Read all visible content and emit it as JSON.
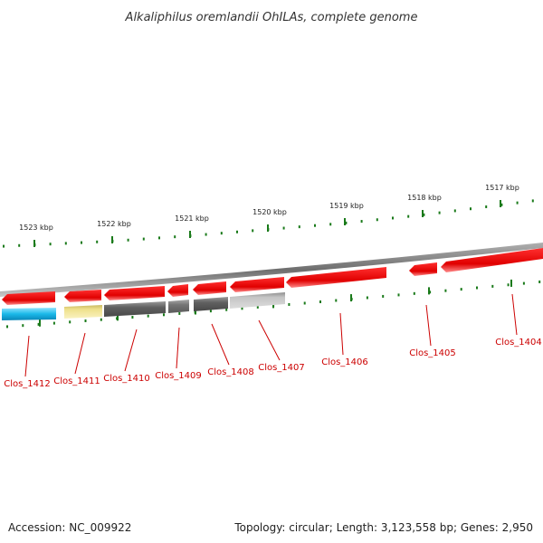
{
  "title": "Alkaliphilus oremlandii OhILAs, complete genome",
  "footer": {
    "accession_label": "Accession:",
    "accession": "NC_009922",
    "topology_label": "Topology:",
    "topology": "circular",
    "length_label": "Length:",
    "length": "3,123,558 bp",
    "genes_label": "Genes:",
    "genes": "2,950"
  },
  "colors": {
    "forward_gene": "#ee1111",
    "backbone": "#8a8a8a",
    "tick": "#1a7a1a",
    "label": "#cc0000",
    "cyan_gene": "#1ab8e8",
    "yellow_gene": "#eee08a",
    "dark_gray_gene": "#6a6a6a",
    "mid_gray_gene": "#7a7a7a",
    "light_gray_gene": "#bcbcbc"
  },
  "ticks": [
    {
      "label": "1523 kbp"
    },
    {
      "label": "1522 kbp"
    },
    {
      "label": "1521 kbp"
    },
    {
      "label": "1520 kbp"
    },
    {
      "label": "1519 kbp"
    },
    {
      "label": "1518 kbp"
    },
    {
      "label": "1517 kbp"
    }
  ],
  "genes": [
    {
      "name": "Clos_1412",
      "color": "cyan_gene"
    },
    {
      "name": "Clos_1411",
      "color": "yellow_gene"
    },
    {
      "name": "Clos_1410",
      "color": "dark_gray_gene"
    },
    {
      "name": "Clos_1409",
      "color": "mid_gray_gene"
    },
    {
      "name": "Clos_1408",
      "color": "dark_gray_gene"
    },
    {
      "name": "Clos_1407",
      "color": "light_gray_gene"
    },
    {
      "name": "Clos_1406",
      "color": "forward_gene"
    },
    {
      "name": "Clos_1405",
      "color": "forward_gene"
    },
    {
      "name": "Clos_1404",
      "color": "forward_gene"
    }
  ]
}
